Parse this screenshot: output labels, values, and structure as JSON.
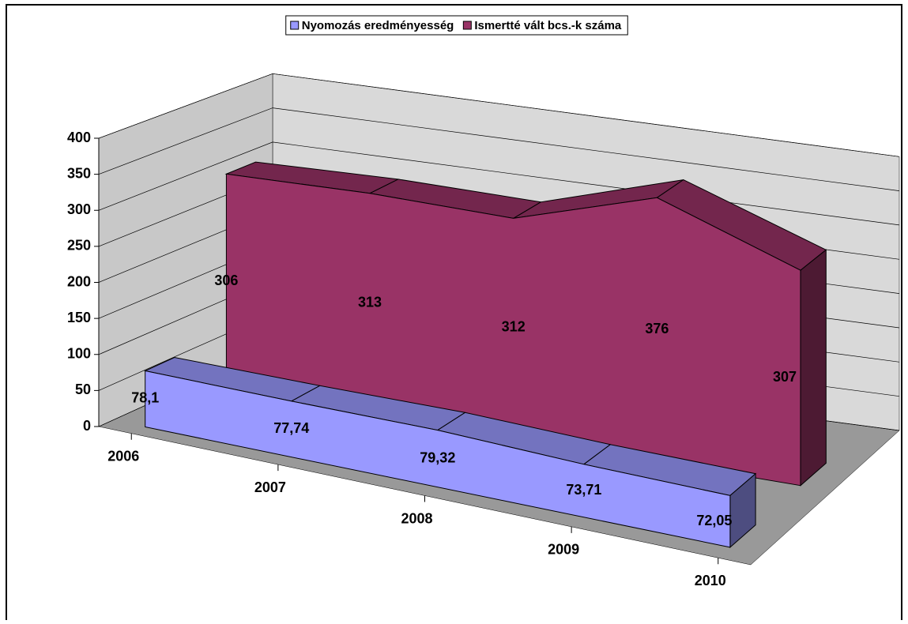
{
  "chart_data": {
    "type": "area3d",
    "categories": [
      "2006",
      "2007",
      "2008",
      "2009",
      "2010"
    ],
    "series": [
      {
        "name": "Nyomozás eredményesség",
        "color": "#9999ff",
        "values": [
          78.1,
          77.74,
          79.32,
          73.71,
          72.05
        ],
        "value_labels": [
          "78,1",
          "77,74",
          "79,32",
          "73,71",
          "72,05"
        ]
      },
      {
        "name": "Ismertté vált bcs.-k száma",
        "color": "#993366",
        "values": [
          306,
          313,
          312,
          376,
          307
        ]
      }
    ],
    "ylim": [
      0,
      400
    ],
    "yticks": [
      0,
      50,
      100,
      150,
      200,
      250,
      300,
      350,
      400
    ],
    "grid": true,
    "legend": "top"
  }
}
